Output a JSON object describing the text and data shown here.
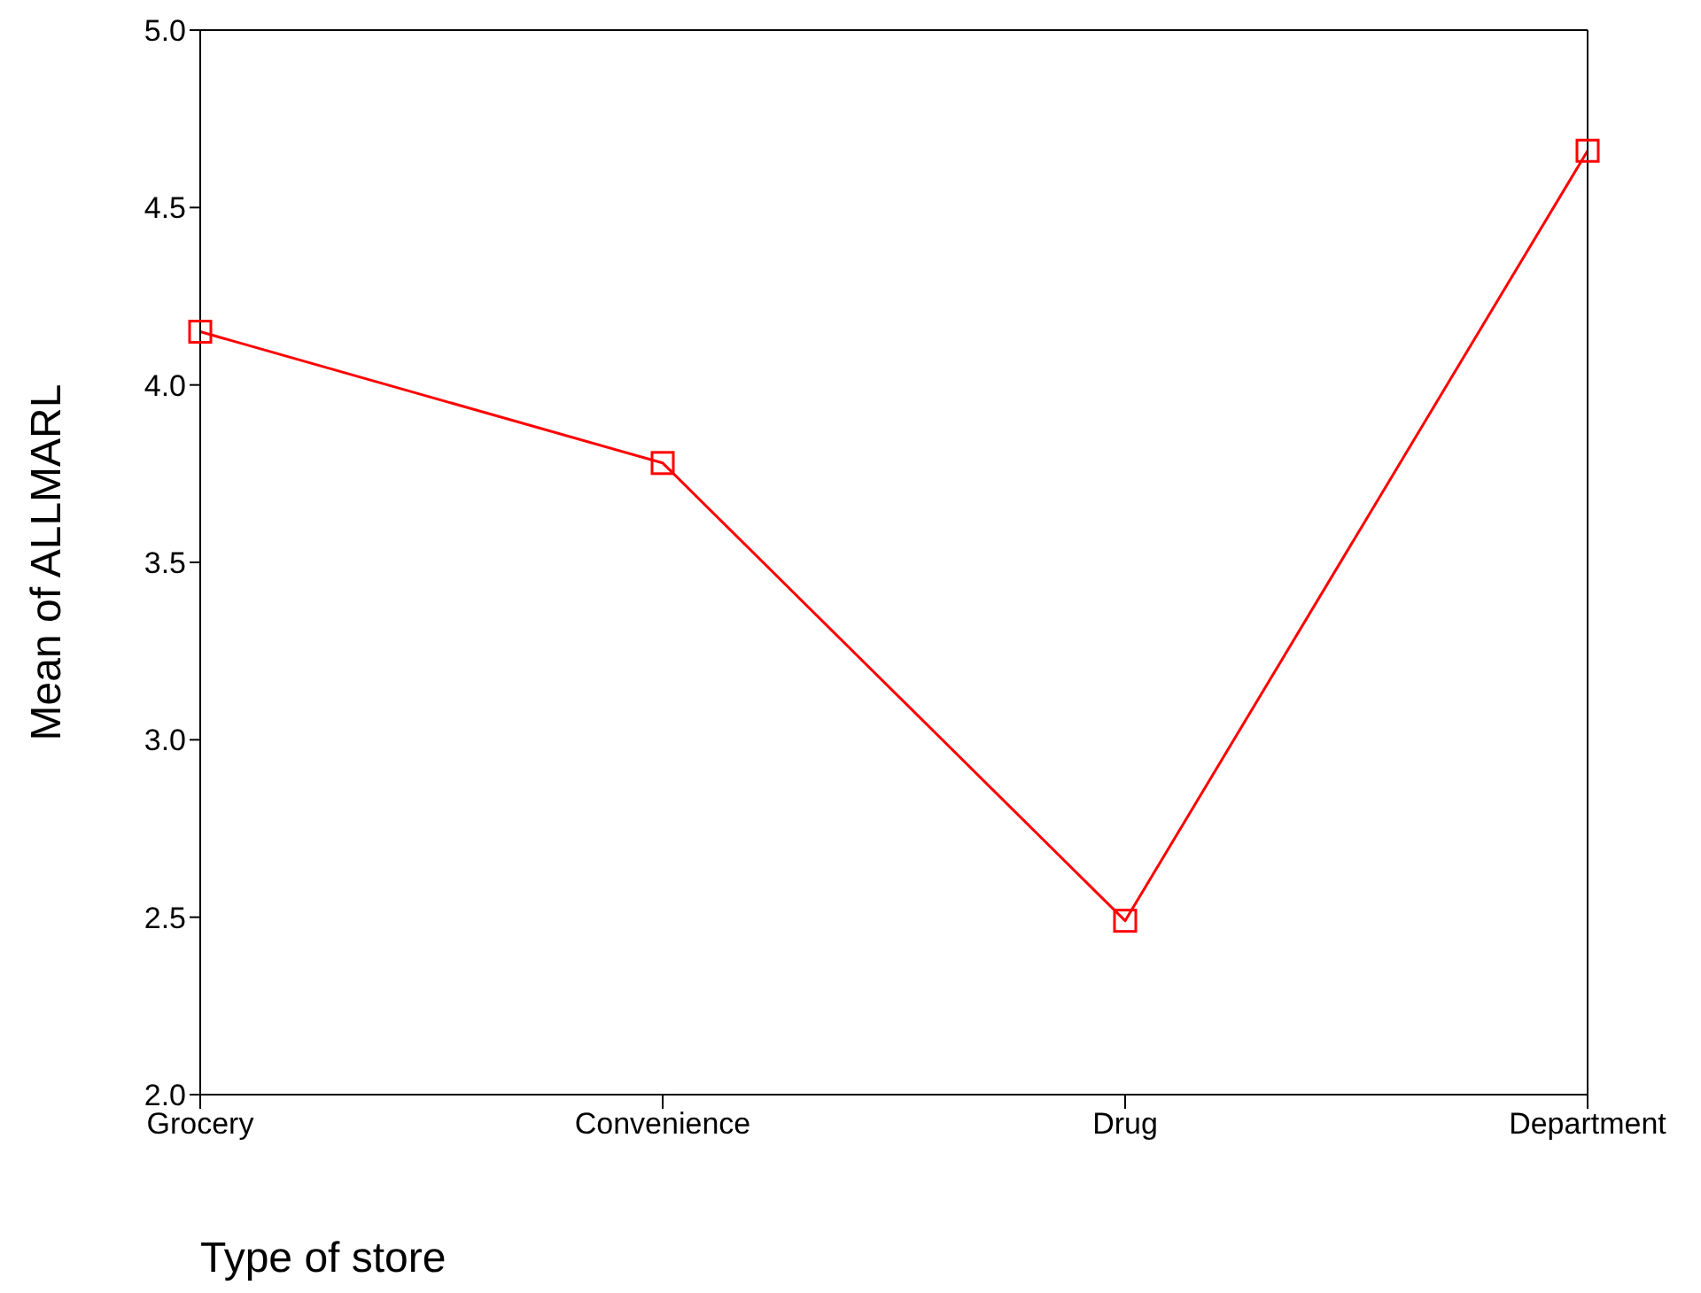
{
  "chart_data": {
    "type": "line",
    "xlabel": "Type of store",
    "ylabel": "Mean of ALLMARL",
    "categories": [
      "Grocery",
      "Convenience",
      "Drug",
      "Department"
    ],
    "series": [
      {
        "color": "#ff0000",
        "values": [
          4.15,
          3.78,
          2.49,
          4.66
        ]
      }
    ],
    "ylim": [
      2.0,
      5.0
    ],
    "yticks": [
      {
        "value": 2.0,
        "label": "2.0"
      },
      {
        "value": 2.5,
        "label": "2.5"
      },
      {
        "value": 3.0,
        "label": "3.0"
      },
      {
        "value": 3.5,
        "label": "3.5"
      },
      {
        "value": 4.0,
        "label": "4.0"
      },
      {
        "value": 4.5,
        "label": "4.5"
      },
      {
        "value": 5.0,
        "label": "5.0"
      }
    ],
    "grid": false,
    "legend": false,
    "marker": "square",
    "line_style": "solid"
  }
}
